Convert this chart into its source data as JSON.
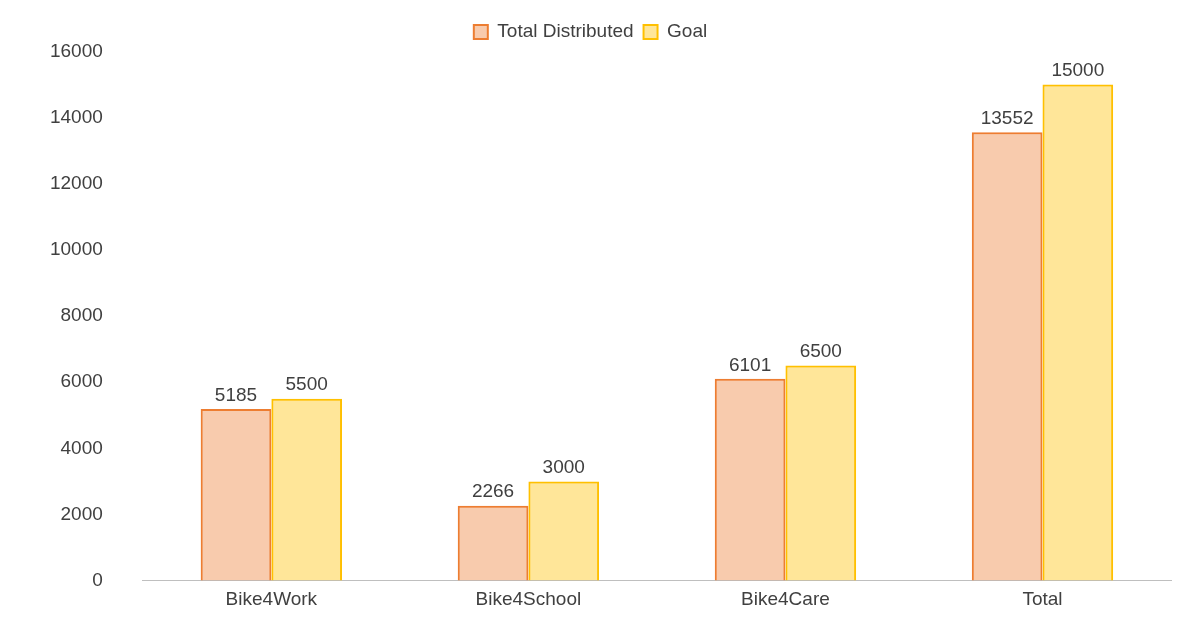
{
  "chart_data": {
    "type": "bar",
    "categories": [
      "Bike4Work",
      "Bike4School",
      "Bike4Care",
      "Total"
    ],
    "series": [
      {
        "name": "Total Distributed",
        "color": "#ed7d31",
        "values": [
          5185,
          2266,
          6101,
          13552
        ]
      },
      {
        "name": "Goal",
        "color": "#ffc000",
        "values": [
          5500,
          3000,
          6500,
          15000
        ]
      }
    ],
    "ylim": [
      0,
      16000
    ],
    "yticks": [
      0,
      2000,
      4000,
      6000,
      8000,
      10000,
      12000,
      14000,
      16000
    ],
    "grid": false,
    "legend": "top",
    "data_labels": true
  }
}
